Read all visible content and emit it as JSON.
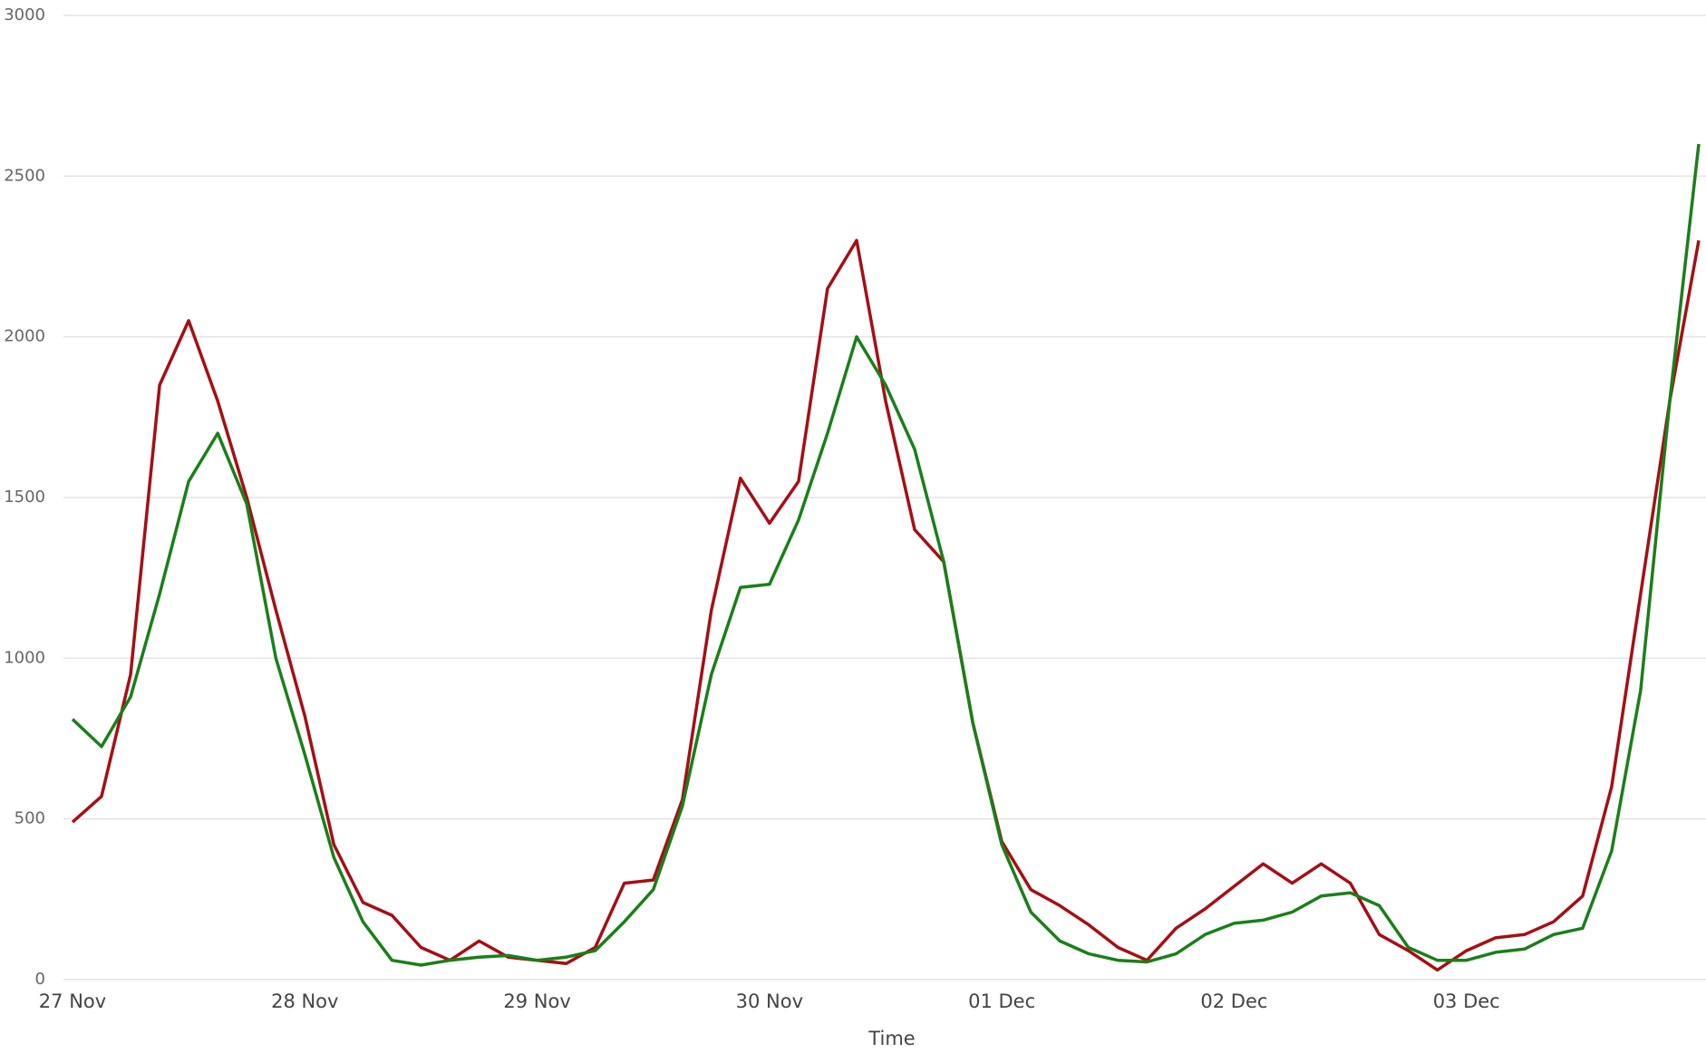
{
  "chart_data": {
    "type": "line",
    "x_label": "Time",
    "categories": [
      "27 Nov",
      null,
      null,
      null,
      null,
      null,
      null,
      null,
      "28 Nov",
      null,
      null,
      null,
      null,
      null,
      null,
      null,
      "29 Nov",
      null,
      null,
      null,
      null,
      null,
      null,
      null,
      "30 Nov",
      null,
      null,
      null,
      null,
      null,
      null,
      null,
      "01 Dec",
      null,
      null,
      null,
      null,
      null,
      null,
      null,
      "02 Dec",
      null,
      null,
      null,
      null,
      null,
      null,
      null,
      "03 Dec",
      null,
      null,
      null,
      null,
      null,
      null,
      null,
      null
    ],
    "series": [
      {
        "color": "#a50f15",
        "values": [
          490,
          570,
          950,
          1850,
          2050,
          1800,
          1500,
          1150,
          820,
          420,
          240,
          200,
          100,
          60,
          120,
          70,
          60,
          50,
          100,
          300,
          310,
          560,
          1150,
          1560,
          1420,
          1550,
          2150,
          2300,
          1800,
          1400,
          1300,
          800,
          430,
          280,
          230,
          170,
          100,
          60,
          160,
          220,
          290,
          360,
          300,
          360,
          300,
          140,
          90,
          30,
          90,
          130,
          140,
          180,
          260,
          600,
          1200,
          1800,
          2300
        ]
      },
      {
        "color": "#1a7f1a",
        "values": [
          810,
          725,
          880,
          1200,
          1550,
          1700,
          1480,
          1000,
          700,
          380,
          180,
          60,
          45,
          60,
          70,
          75,
          60,
          70,
          90,
          180,
          280,
          540,
          950,
          1220,
          1230,
          1430,
          1700,
          2000,
          1850,
          1650,
          1300,
          800,
          420,
          210,
          120,
          80,
          60,
          55,
          80,
          140,
          175,
          185,
          210,
          260,
          270,
          230,
          100,
          60,
          60,
          85,
          95,
          140,
          160,
          400,
          900,
          1800,
          2600
        ]
      }
    ],
    "ylim": [
      0,
      3000
    ],
    "yticks": [
      0,
      500,
      1000,
      1500,
      2000,
      2500,
      3000
    ],
    "grid": true
  }
}
